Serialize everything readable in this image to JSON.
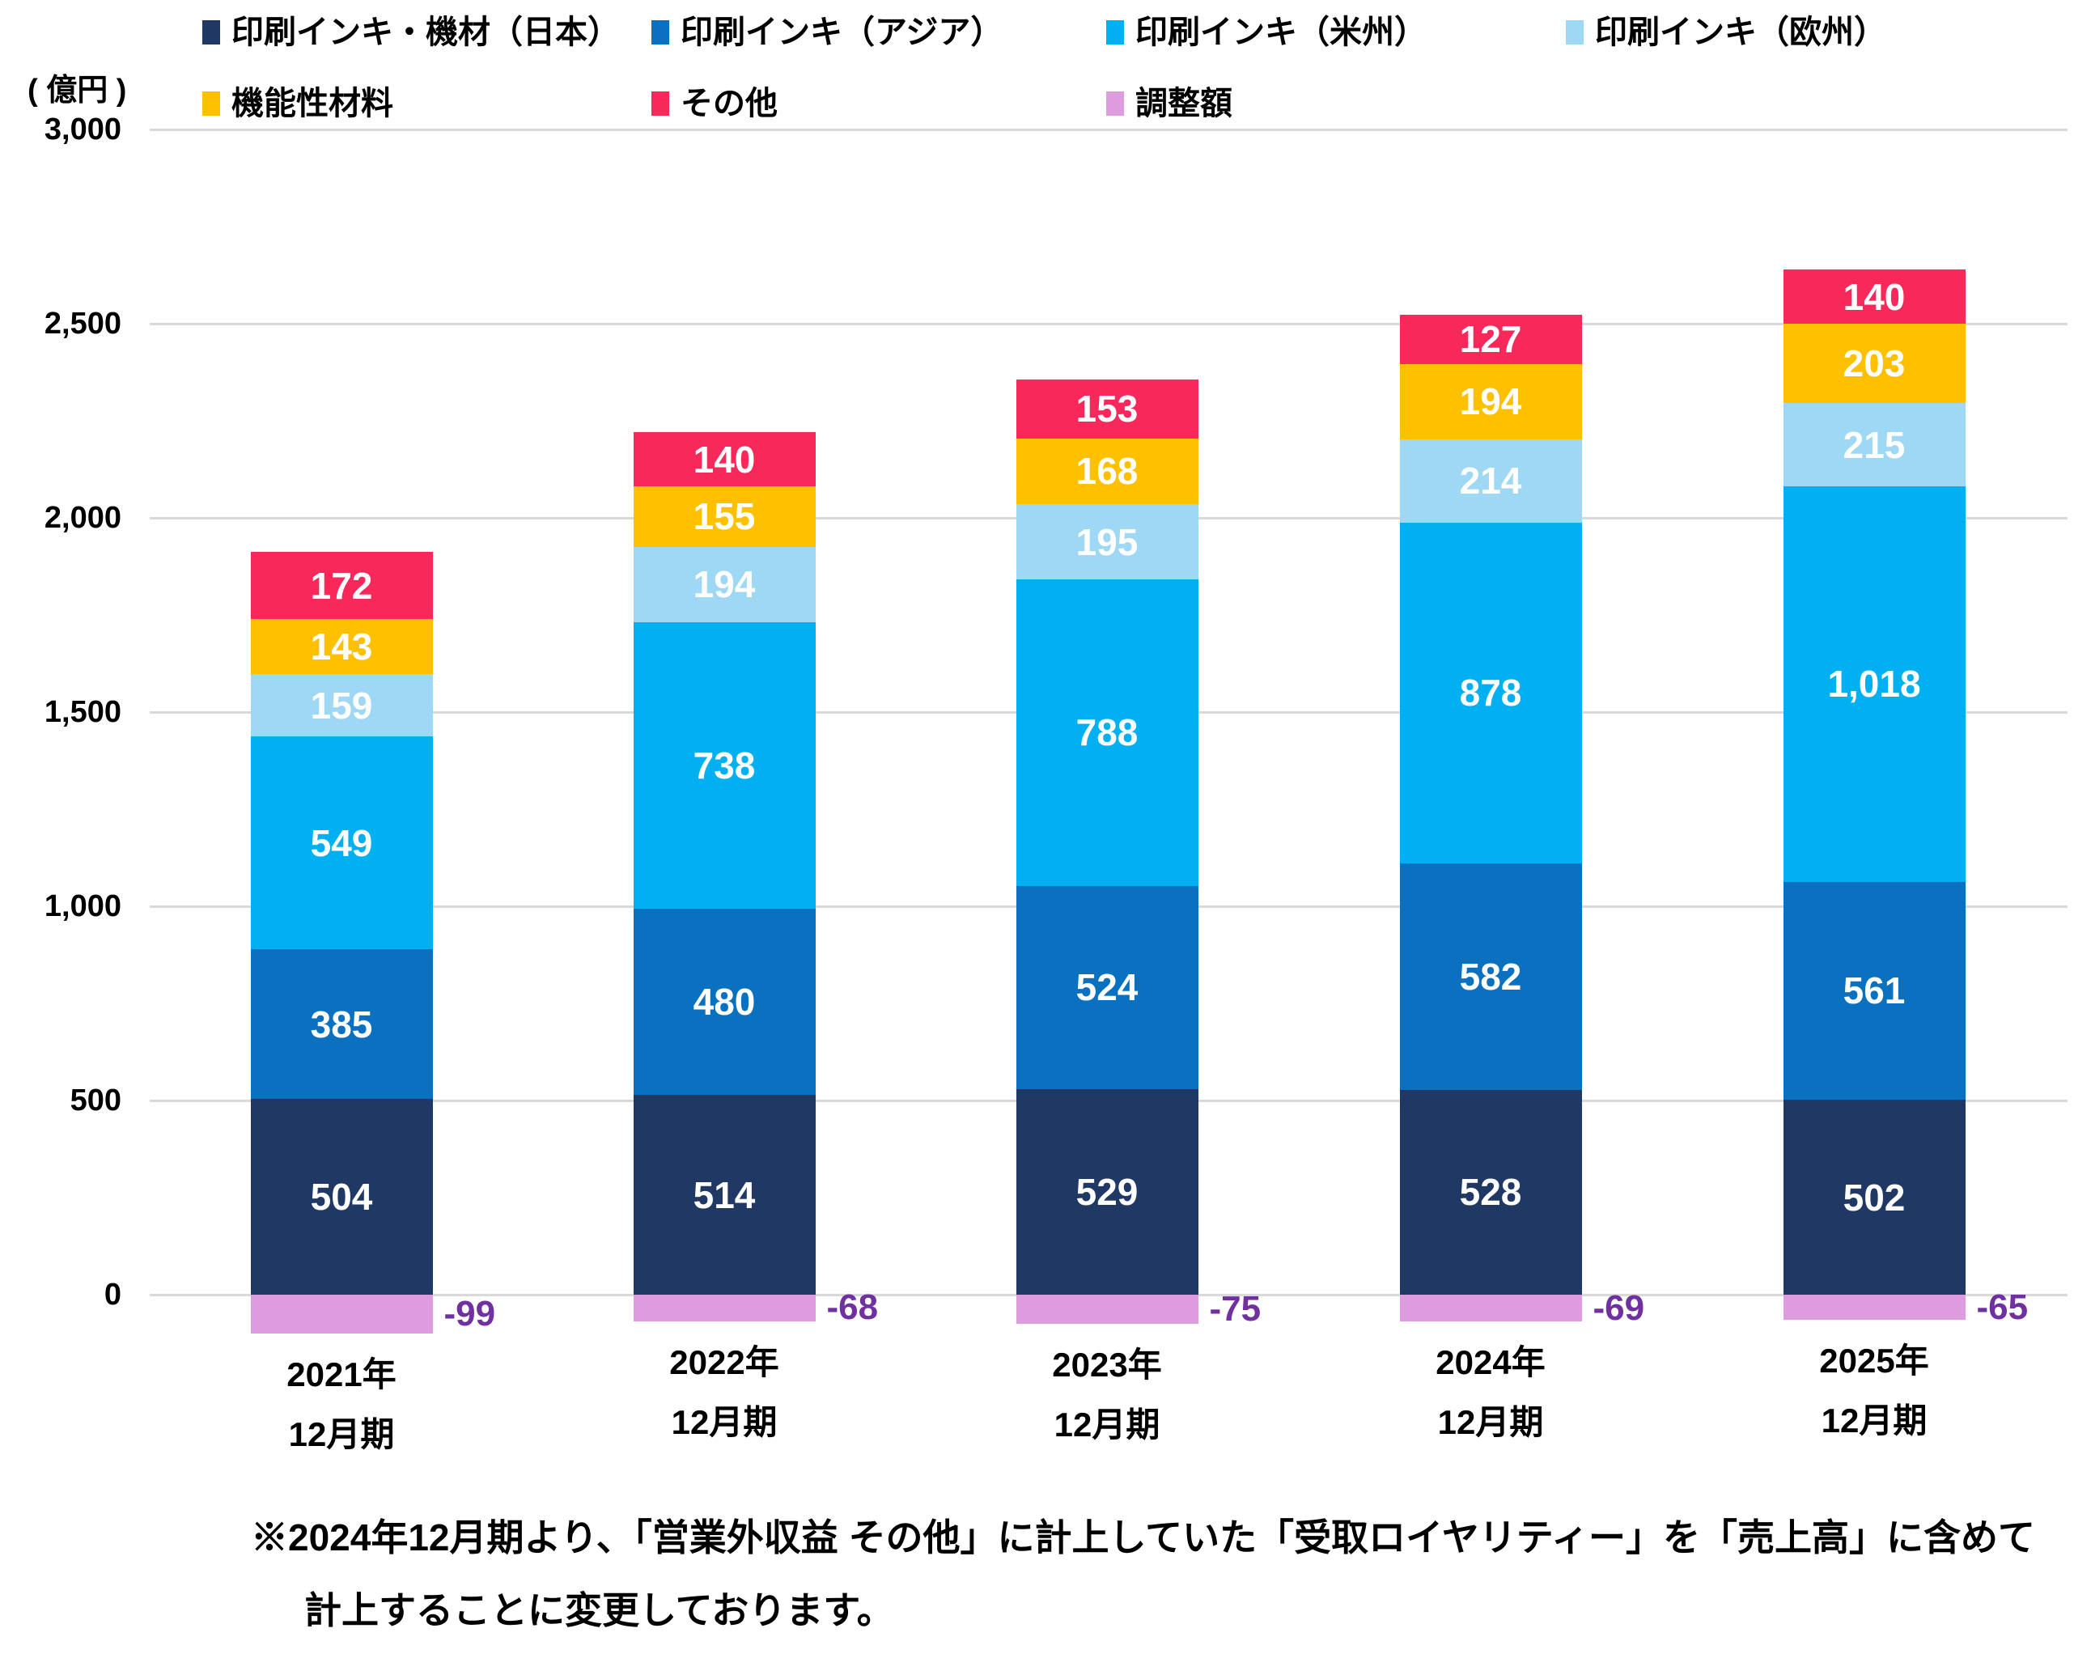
{
  "chart_data": {
    "type": "bar",
    "stacked": true,
    "title": "",
    "unit_label": "( 億円 )",
    "xlabel": "",
    "ylabel": "",
    "ylim": [
      -150,
      3000
    ],
    "grid": true,
    "legend_position": "top",
    "categories": [
      [
        "2021年",
        "12月期"
      ],
      [
        "2022年",
        "12月期"
      ],
      [
        "2023年",
        "12月期"
      ],
      [
        "2024年",
        "12月期"
      ],
      [
        "2025年",
        "12月期"
      ]
    ],
    "yticks": {
      "values": [
        0,
        500,
        1000,
        1500,
        2000,
        2500,
        3000
      ],
      "labels": [
        "0",
        "500",
        "1,000",
        "1,500",
        "2,000",
        "2,500",
        "3,000"
      ]
    },
    "series": [
      {
        "name": "印刷インキ・機材（日本）",
        "color": "#1F3864",
        "values": [
          504,
          514,
          529,
          528,
          502
        ]
      },
      {
        "name": "印刷インキ（アジア）",
        "color": "#0A70C0",
        "values": [
          385,
          480,
          524,
          582,
          561
        ]
      },
      {
        "name": "印刷インキ（米州）",
        "color": "#00B0F0",
        "values": [
          549,
          738,
          788,
          878,
          1018
        ]
      },
      {
        "name": "印刷インキ（欧州）",
        "color": "#9FD8F5",
        "values": [
          159,
          194,
          195,
          214,
          215
        ]
      },
      {
        "name": "機能性材料",
        "color": "#FFC000",
        "values": [
          143,
          155,
          168,
          194,
          203
        ]
      },
      {
        "name": "その他",
        "color": "#F8295A",
        "values": [
          172,
          140,
          153,
          127,
          140
        ]
      },
      {
        "name": "調整額",
        "color": "#DD9CDD",
        "values": [
          -99,
          -68,
          -75,
          -69,
          -65
        ]
      }
    ],
    "negative_label_color": "#7030A0",
    "gridline_color": "#D9D9D9"
  },
  "note": {
    "line1": "※2024年12月期より、「営業外収益 その他」に計上していた「受取ロイヤリティー」を「売上高」に含めて",
    "line2": "計上することに変更しております。"
  }
}
